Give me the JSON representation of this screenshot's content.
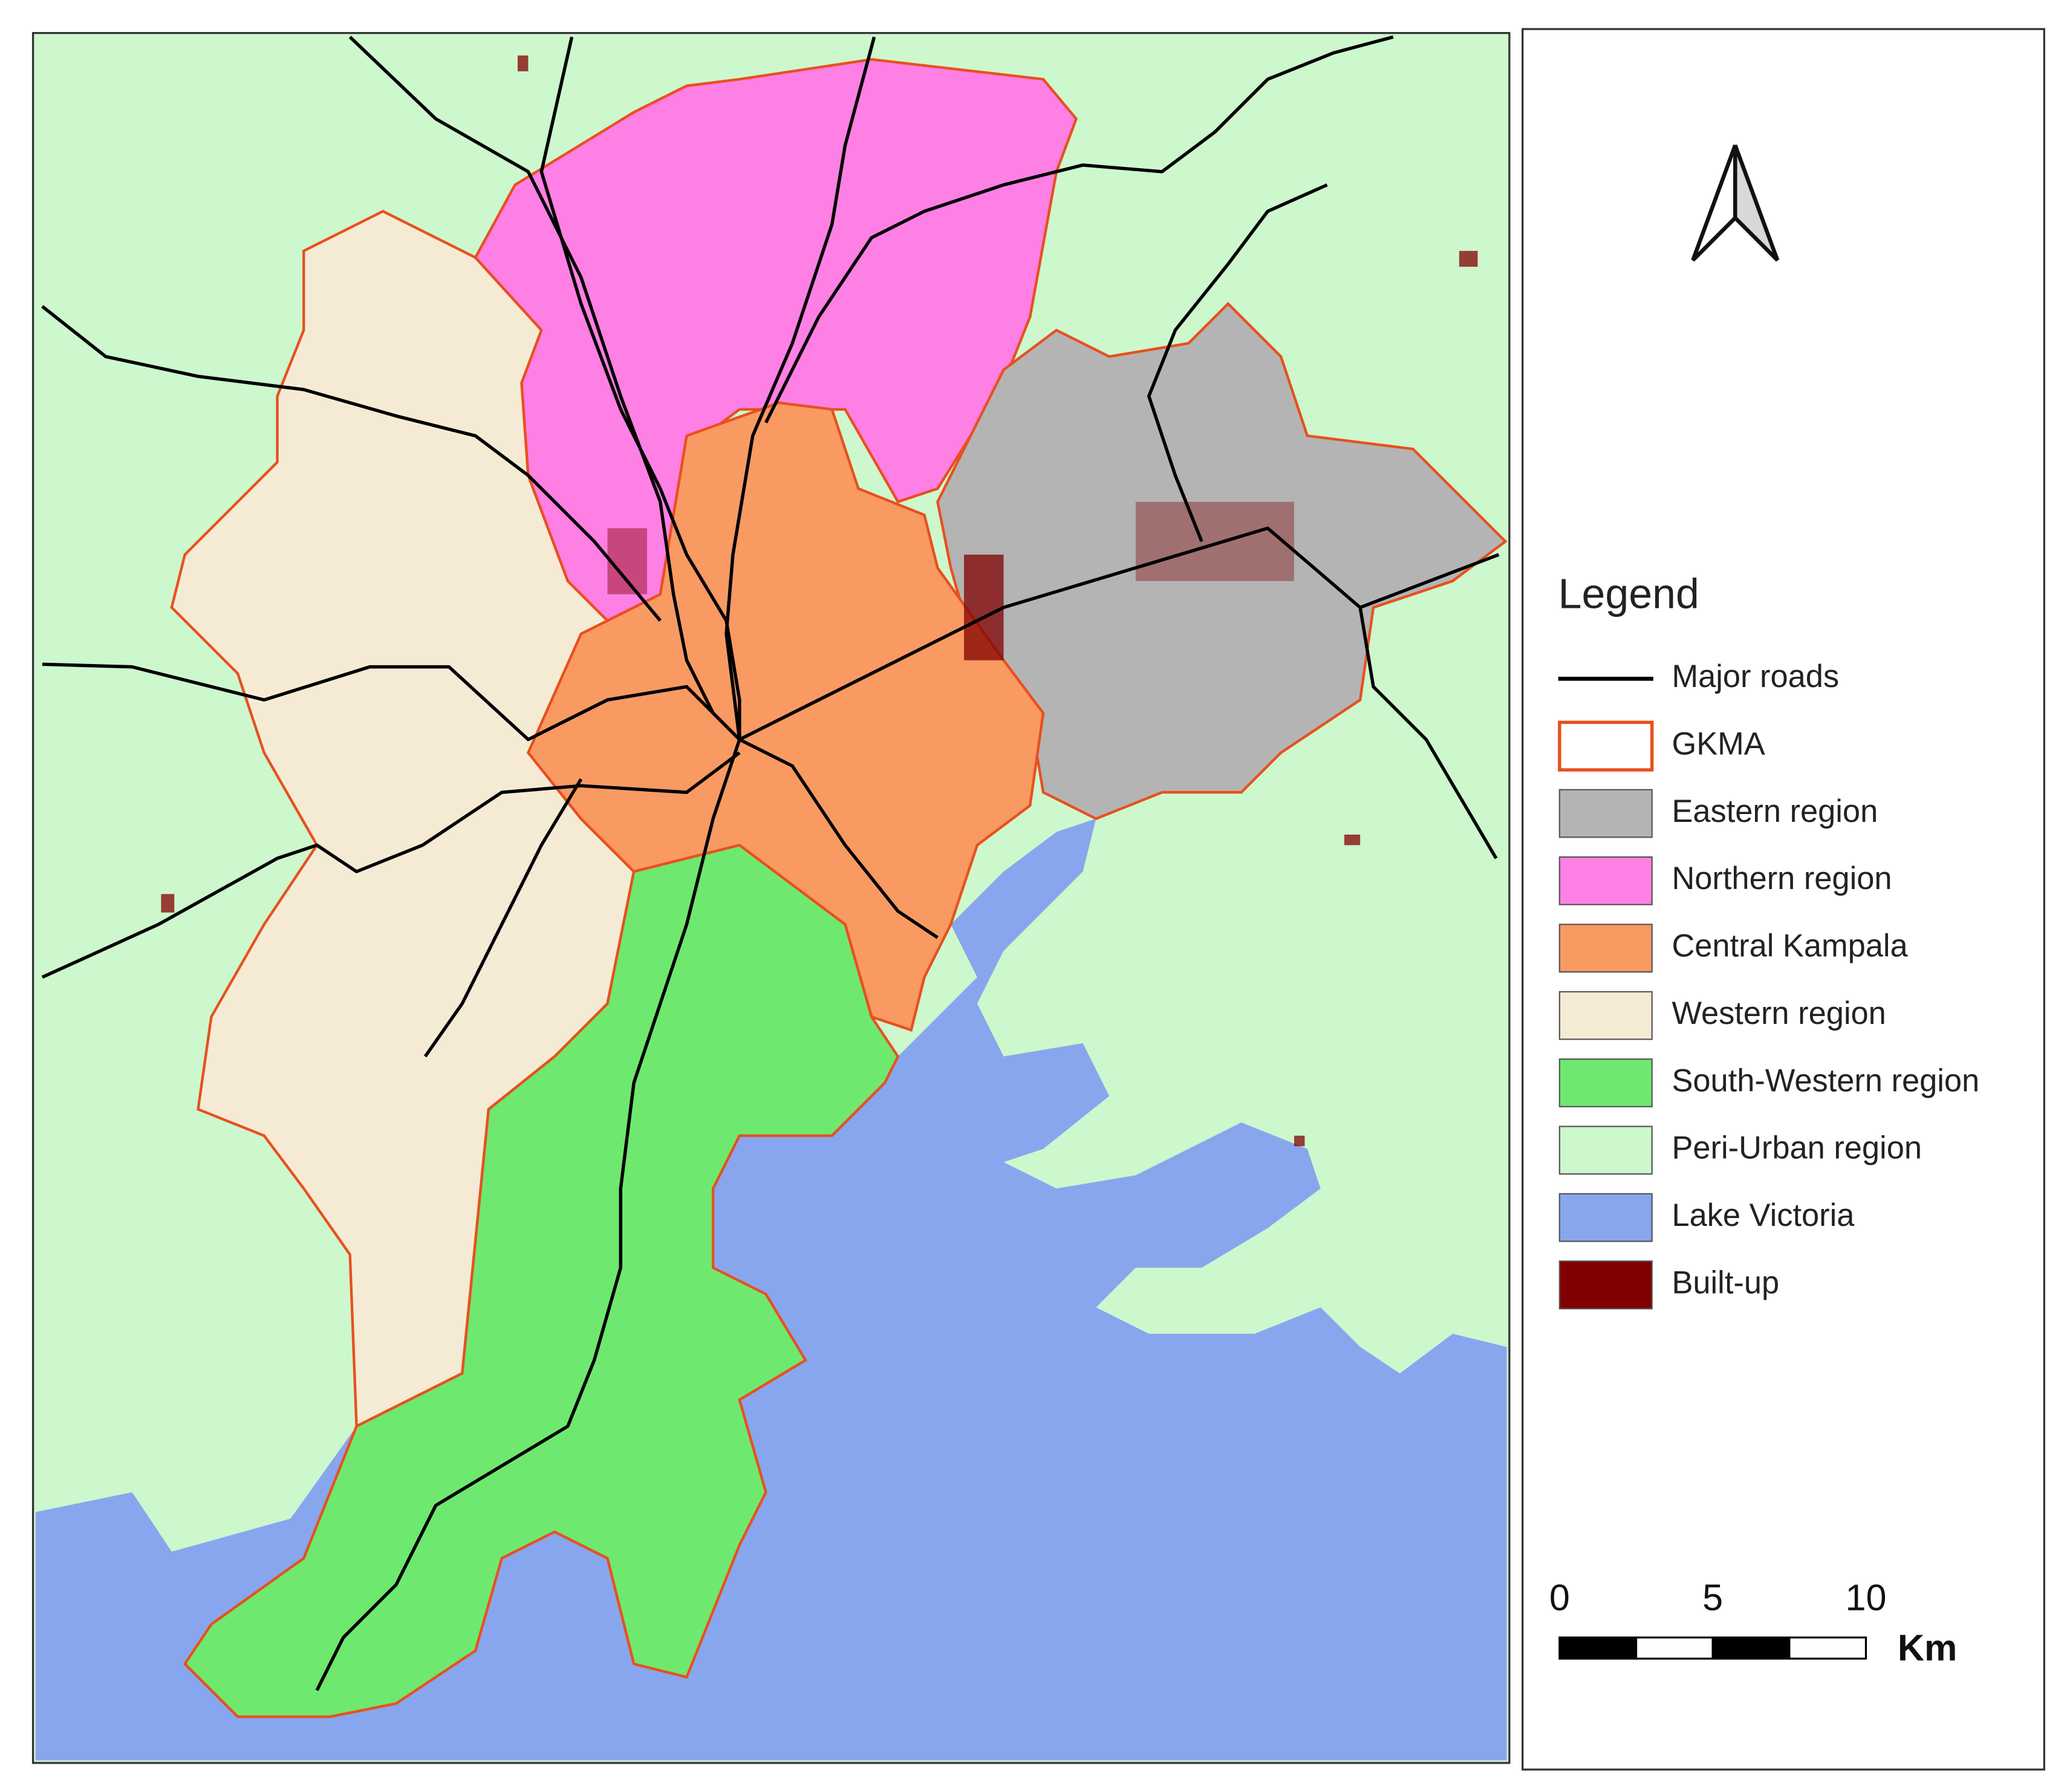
{
  "legend": {
    "title": "Legend",
    "items": [
      {
        "label": "Major roads",
        "symbol": "line",
        "color": "#000000"
      },
      {
        "label": "GKMA",
        "symbol": "outline",
        "color": "#e8501e"
      },
      {
        "label": "Eastern region",
        "symbol": "fill",
        "color": "#b4b4b4"
      },
      {
        "label": "Northern region",
        "symbol": "fill",
        "color": "#ff80e4"
      },
      {
        "label": "Central Kampala",
        "symbol": "fill",
        "color": "#f99a62"
      },
      {
        "label": "Western region",
        "symbol": "fill",
        "color": "#f5ebd5"
      },
      {
        "label": "South-Western region",
        "symbol": "fill",
        "color": "#6fe86f"
      },
      {
        "label": "Peri-Urban region",
        "symbol": "fill",
        "color": "#cdf7cd"
      },
      {
        "label": "Lake Victoria",
        "symbol": "fill",
        "color": "#88a6ee"
      },
      {
        "label": "Built-up",
        "symbol": "fill",
        "color": "#800000"
      }
    ]
  },
  "scale_bar": {
    "ticks": [
      0,
      5,
      10
    ],
    "unit": "Km"
  }
}
